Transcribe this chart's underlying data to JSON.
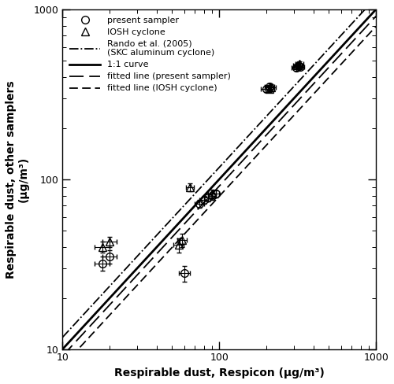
{
  "xlabel": "Respirable dust, Respicon (μg/m³)",
  "ylabel": "Respirable dust, other samplers\n(μg/m³)",
  "xlim": [
    10,
    1000
  ],
  "ylim": [
    10,
    1000
  ],
  "present_x": [
    18,
    20,
    60,
    75,
    80,
    85,
    90,
    95,
    200,
    210,
    310,
    320,
    330
  ],
  "present_y": [
    32,
    35,
    28,
    72,
    76,
    78,
    80,
    82,
    340,
    350,
    455,
    465,
    460
  ],
  "present_xerr": [
    2,
    2,
    5,
    5,
    5,
    5,
    5,
    5,
    15,
    15,
    20,
    20,
    20
  ],
  "present_yerr": [
    3,
    3,
    3,
    4,
    4,
    4,
    4,
    4,
    15,
    15,
    18,
    18,
    18
  ],
  "iosh_x": [
    18,
    20,
    55,
    58,
    65,
    90,
    210,
    215,
    315,
    325
  ],
  "iosh_y": [
    40,
    43,
    41,
    44,
    90,
    82,
    342,
    347,
    468,
    478
  ],
  "iosh_xerr": [
    2,
    2,
    4,
    4,
    4,
    5,
    15,
    15,
    20,
    20
  ],
  "iosh_yerr": [
    3,
    3,
    4,
    4,
    5,
    5,
    15,
    15,
    18,
    18
  ],
  "legend_labels": [
    "present sampler",
    "IOSH cyclone",
    "Rando et al. (2005)\n(SKC aluminum cyclone)",
    "1:1 curve",
    "fitted line (present sampler)",
    "fitted line (IOSH cyclone)"
  ],
  "rando_m": 1.0,
  "rando_b": 0.07,
  "present_fit_m": 1.0,
  "present_fit_b": -0.04,
  "iosh_fit_m": 1.0,
  "iosh_fit_b": -0.1,
  "color_black": "#000000",
  "bg_color": "#ffffff",
  "marker_size": 7,
  "lw_thick": 2.0,
  "lw_thin": 1.3
}
